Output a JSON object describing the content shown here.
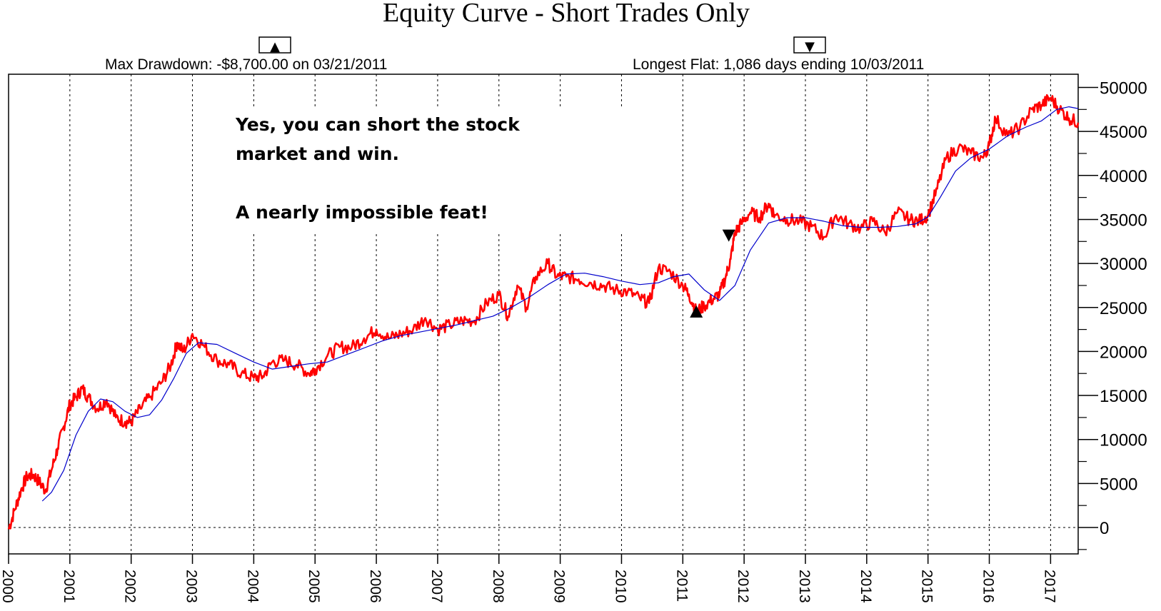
{
  "title": "Equity Curve - Short Trades Only",
  "stats": {
    "max_drawdown": "Max Drawdown: -$8,700.00 on 03/21/2011",
    "longest_flat": "Longest Flat: 1,086 days ending 10/03/2011",
    "up_marker": "▲",
    "down_marker": "▼"
  },
  "annotation": {
    "line1": "Yes, you can short the stock",
    "line2": "market and win.",
    "line3": "A nearly impossible feat!"
  },
  "colors": {
    "equity": "#ff0000",
    "average": "#0000cc",
    "grid": "#000000",
    "markers": "#000000"
  },
  "chart_data": {
    "type": "line",
    "title": "Equity Curve - Short Trades Only",
    "xlabel": "",
    "ylabel": "",
    "xlim": [
      2000.0,
      2017.45
    ],
    "ylim": [
      -3000,
      51500
    ],
    "y_ticks": [
      0,
      5000,
      10000,
      15000,
      20000,
      25000,
      30000,
      35000,
      40000,
      45000,
      50000
    ],
    "x_ticks": [
      2000,
      2001,
      2002,
      2003,
      2004,
      2005,
      2006,
      2007,
      2008,
      2009,
      2010,
      2011,
      2012,
      2013,
      2014,
      2015,
      2016,
      2017
    ],
    "grid": true,
    "series": [
      {
        "role": "equity",
        "x": [
          2000.0,
          2000.1,
          2000.2,
          2000.3,
          2000.4,
          2000.5,
          2000.6,
          2000.7,
          2000.8,
          2000.9,
          2001.0,
          2001.1,
          2001.2,
          2001.3,
          2001.45,
          2001.6,
          2001.75,
          2001.9,
          2002.0,
          2002.15,
          2002.3,
          2002.5,
          2002.65,
          2002.75,
          2002.85,
          2003.0,
          2003.2,
          2003.4,
          2003.6,
          2003.8,
          2004.0,
          2004.15,
          2004.3,
          2004.5,
          2004.7,
          2004.9,
          2005.0,
          2005.2,
          2005.4,
          2005.6,
          2005.8,
          2006.0,
          2006.2,
          2006.4,
          2006.6,
          2006.8,
          2007.0,
          2007.2,
          2007.4,
          2007.6,
          2007.8,
          2008.0,
          2008.15,
          2008.3,
          2008.45,
          2008.6,
          2008.8,
          2008.95,
          2009.1,
          2009.3,
          2009.5,
          2009.7,
          2009.9,
          2010.1,
          2010.3,
          2010.45,
          2010.6,
          2010.8,
          2011.0,
          2011.1,
          2011.22,
          2011.35,
          2011.5,
          2011.6,
          2011.7,
          2011.78,
          2011.85,
          2011.95,
          2012.1,
          2012.25,
          2012.4,
          2012.5,
          2012.7,
          2012.9,
          2013.1,
          2013.3,
          2013.5,
          2013.7,
          2013.9,
          2014.1,
          2014.3,
          2014.5,
          2014.7,
          2014.85,
          2015.0,
          2015.15,
          2015.3,
          2015.5,
          2015.7,
          2015.9,
          2016.0,
          2016.1,
          2016.3,
          2016.5,
          2016.7,
          2016.85,
          2017.0,
          2017.15,
          2017.3,
          2017.45
        ],
        "y": [
          -200,
          2000,
          4200,
          5800,
          6000,
          5200,
          4200,
          6500,
          9000,
          11500,
          14000,
          14800,
          15800,
          14800,
          13500,
          14500,
          12500,
          12000,
          12000,
          13500,
          14800,
          16500,
          18500,
          21000,
          20000,
          22000,
          20500,
          19000,
          18500,
          17500,
          17000,
          17200,
          18800,
          19000,
          18500,
          17500,
          18000,
          19500,
          20500,
          20500,
          21500,
          22500,
          21500,
          22000,
          22500,
          23800,
          22500,
          23000,
          23500,
          23500,
          25500,
          26500,
          24000,
          27500,
          25000,
          28500,
          30000,
          28500,
          28500,
          28200,
          27800,
          27500,
          27000,
          26800,
          26000,
          25500,
          29500,
          29000,
          27500,
          26500,
          24500,
          25200,
          26000,
          26500,
          28500,
          30500,
          33500,
          34500,
          35800,
          35200,
          36800,
          35500,
          35000,
          34800,
          34200,
          33000,
          35500,
          34500,
          34000,
          34800,
          33500,
          35800,
          35000,
          34800,
          35500,
          38500,
          42000,
          43200,
          42500,
          42000,
          43500,
          46500,
          44500,
          45500,
          47500,
          48000,
          48800,
          47500,
          46500,
          46000
        ]
      },
      {
        "role": "average",
        "x": [
          2000.55,
          2000.7,
          2000.9,
          2001.1,
          2001.3,
          2001.5,
          2001.7,
          2001.9,
          2002.1,
          2002.3,
          2002.5,
          2002.7,
          2002.9,
          2003.1,
          2003.4,
          2003.7,
          2004.0,
          2004.3,
          2004.6,
          2004.9,
          2005.2,
          2005.5,
          2005.8,
          2006.1,
          2006.4,
          2006.7,
          2007.0,
          2007.3,
          2007.6,
          2007.9,
          2008.2,
          2008.5,
          2008.8,
          2009.1,
          2009.4,
          2009.7,
          2010.0,
          2010.3,
          2010.6,
          2010.85,
          2011.1,
          2011.35,
          2011.6,
          2011.85,
          2012.1,
          2012.4,
          2012.7,
          2013.0,
          2013.3,
          2013.6,
          2013.9,
          2014.2,
          2014.5,
          2014.8,
          2015.0,
          2015.2,
          2015.45,
          2015.7,
          2016.0,
          2016.3,
          2016.6,
          2016.85,
          2017.1,
          2017.3,
          2017.45
        ],
        "y": [
          3000,
          4000,
          6500,
          10500,
          13200,
          14600,
          14300,
          13200,
          12500,
          12800,
          14500,
          17000,
          19800,
          21000,
          20800,
          19800,
          18800,
          18000,
          18300,
          18600,
          18800,
          19600,
          20400,
          21200,
          21800,
          22200,
          22600,
          23000,
          23500,
          24000,
          25000,
          26200,
          27600,
          28800,
          28900,
          28500,
          28000,
          27600,
          27800,
          28500,
          28800,
          27000,
          25800,
          27500,
          31500,
          34600,
          35200,
          35200,
          34800,
          34300,
          34100,
          34100,
          34200,
          34500,
          35300,
          37500,
          40500,
          42000,
          43000,
          44500,
          45500,
          46200,
          47500,
          47800,
          47600
        ]
      }
    ],
    "markers": [
      {
        "type": "triangle-up",
        "x": 2011.22,
        "y": 24500
      },
      {
        "type": "triangle-down",
        "x": 2011.75,
        "y": 33200
      }
    ]
  }
}
